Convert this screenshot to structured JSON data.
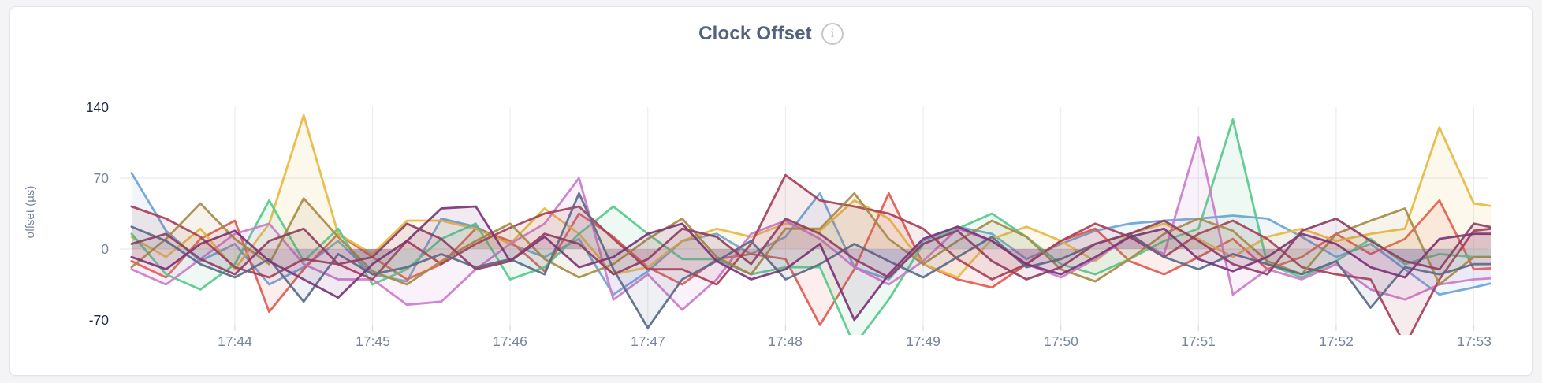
{
  "header": {
    "title": "Clock Offset",
    "info_glyph": "i"
  },
  "chart_data": {
    "type": "line",
    "title": "Clock Offset",
    "xlabel": "",
    "ylabel": "offset (µs)",
    "y_ticks": [
      140,
      70,
      0,
      -70
    ],
    "y_strong_ticks": [
      140,
      -70
    ],
    "y_gridlines": [
      70,
      0
    ],
    "ylim": [
      -81.7,
      167.2
    ],
    "xlim_seconds": [
      194,
      786
    ],
    "x_start_seconds": 195,
    "x_step_seconds": 15,
    "x_ticks": [
      {
        "t": 240,
        "label": "17:44"
      },
      {
        "t": 300,
        "label": "17:45"
      },
      {
        "t": 360,
        "label": "17:46"
      },
      {
        "t": 420,
        "label": "17:47"
      },
      {
        "t": 480,
        "label": "17:48"
      },
      {
        "t": 540,
        "label": "17:49"
      },
      {
        "t": 600,
        "label": "17:50"
      },
      {
        "t": 660,
        "label": "17:51"
      },
      {
        "t": 720,
        "label": "17:52"
      },
      {
        "t": 780,
        "label": "17:53"
      }
    ],
    "grid": {
      "h_color": "#e9e9eb",
      "v_color": "#ededef",
      "tick_color": "#dcdce0"
    },
    "fill_opacity": 0.1,
    "line_width": 2.8,
    "legend": "none",
    "series": [
      {
        "name": "blue",
        "color": "#6BA3D8",
        "values": [
          75,
          18,
          -12,
          5,
          -35,
          -18,
          8,
          -25,
          -32,
          30,
          22,
          5,
          -8,
          10,
          -45,
          -22,
          8,
          15,
          -5,
          12,
          55,
          -18,
          -30,
          8,
          22,
          15,
          -10,
          5,
          18,
          25,
          28,
          30,
          33,
          30,
          12,
          -8,
          5,
          -20,
          -45,
          -38,
          -30
        ]
      },
      {
        "name": "coral",
        "color": "#E25A4F",
        "values": [
          -12,
          -28,
          10,
          28,
          -62,
          -20,
          15,
          -8,
          -30,
          -15,
          20,
          8,
          -22,
          35,
          12,
          -18,
          -35,
          -10,
          -5,
          -10,
          -75,
          -20,
          55,
          -15,
          -30,
          -38,
          -15,
          8,
          20,
          -12,
          -25,
          -8,
          10,
          -20,
          -8,
          15,
          -5,
          10,
          48,
          -20,
          -18
        ]
      },
      {
        "name": "gold",
        "color": "#E8BA42",
        "values": [
          12,
          -8,
          20,
          -20,
          25,
          132,
          15,
          -5,
          28,
          28,
          20,
          5,
          40,
          15,
          -25,
          -18,
          8,
          20,
          12,
          25,
          18,
          48,
          30,
          -15,
          -28,
          10,
          22,
          8,
          -12,
          15,
          25,
          10,
          -8,
          12,
          20,
          8,
          15,
          20,
          120,
          45,
          40
        ]
      },
      {
        "name": "green",
        "color": "#57C98B",
        "values": [
          15,
          -25,
          -40,
          -15,
          48,
          -12,
          20,
          -35,
          -20,
          10,
          25,
          -30,
          -18,
          15,
          42,
          15,
          -10,
          -10,
          -25,
          -18,
          -18,
          -95,
          -50,
          5,
          20,
          35,
          12,
          -15,
          -25,
          -10,
          8,
          20,
          128,
          -15,
          -28,
          -12,
          10,
          -15,
          -5,
          -8,
          -8
        ]
      },
      {
        "name": "orchid",
        "color": "#CC7CCB",
        "values": [
          -20,
          -35,
          -10,
          15,
          25,
          -15,
          -30,
          -30,
          -55,
          -52,
          -20,
          5,
          25,
          70,
          -50,
          -25,
          -60,
          -30,
          15,
          28,
          10,
          -18,
          -35,
          -12,
          20,
          8,
          -15,
          -28,
          -10,
          12,
          -5,
          110,
          -45,
          -20,
          -30,
          -15,
          -40,
          -50,
          -35,
          -30,
          -28
        ]
      },
      {
        "name": "maroon",
        "color": "#A64059",
        "values": [
          42,
          30,
          12,
          -18,
          -28,
          -10,
          -15,
          -30,
          8,
          -15,
          5,
          21,
          35,
          42,
          10,
          -20,
          -20,
          -35,
          5,
          73,
          48,
          42,
          35,
          20,
          -10,
          -30,
          -15,
          8,
          25,
          12,
          -8,
          15,
          28,
          10,
          -18,
          -25,
          -30,
          -95,
          -30,
          18,
          22
        ]
      },
      {
        "name": "olive",
        "color": "#A78B49",
        "values": [
          -18,
          10,
          45,
          10,
          -15,
          50,
          12,
          -22,
          -35,
          -12,
          8,
          25,
          -10,
          -28,
          -15,
          10,
          30,
          -8,
          -25,
          20,
          20,
          55,
          10,
          -15,
          8,
          28,
          12,
          -20,
          -32,
          -10,
          15,
          30,
          18,
          -12,
          -25,
          15,
          28,
          40,
          -35,
          -8,
          -8
        ]
      },
      {
        "name": "slate",
        "color": "#5C6A88",
        "values": [
          22,
          8,
          -15,
          -28,
          -10,
          -52,
          -5,
          -25,
          -18,
          -5,
          -18,
          -10,
          -25,
          55,
          -20,
          -78,
          -30,
          -12,
          8,
          -30,
          -15,
          5,
          -12,
          -28,
          -8,
          12,
          -18,
          -10,
          5,
          15,
          -8,
          -20,
          -5,
          -15,
          -25,
          -12,
          -58,
          -18,
          -25,
          -15,
          -15
        ]
      },
      {
        "name": "plum",
        "color": "#7B3478",
        "values": [
          -8,
          -20,
          5,
          18,
          -12,
          -30,
          -48,
          -15,
          8,
          40,
          42,
          -12,
          12,
          -18,
          -8,
          15,
          25,
          -12,
          -30,
          -20,
          5,
          -70,
          -25,
          10,
          22,
          8,
          -15,
          -25,
          -8,
          12,
          20,
          -10,
          -22,
          -8,
          15,
          5,
          -18,
          -28,
          10,
          15,
          15
        ]
      },
      {
        "name": "berry",
        "color": "#8E3F63",
        "values": [
          5,
          15,
          -10,
          -25,
          8,
          20,
          -15,
          -8,
          25,
          10,
          -20,
          -12,
          15,
          5,
          -25,
          -10,
          20,
          12,
          -15,
          30,
          15,
          -10,
          -28,
          5,
          18,
          -12,
          -30,
          -18,
          5,
          15,
          28,
          8,
          -15,
          -25,
          18,
          30,
          8,
          -12,
          -20,
          25,
          18
        ]
      }
    ]
  }
}
